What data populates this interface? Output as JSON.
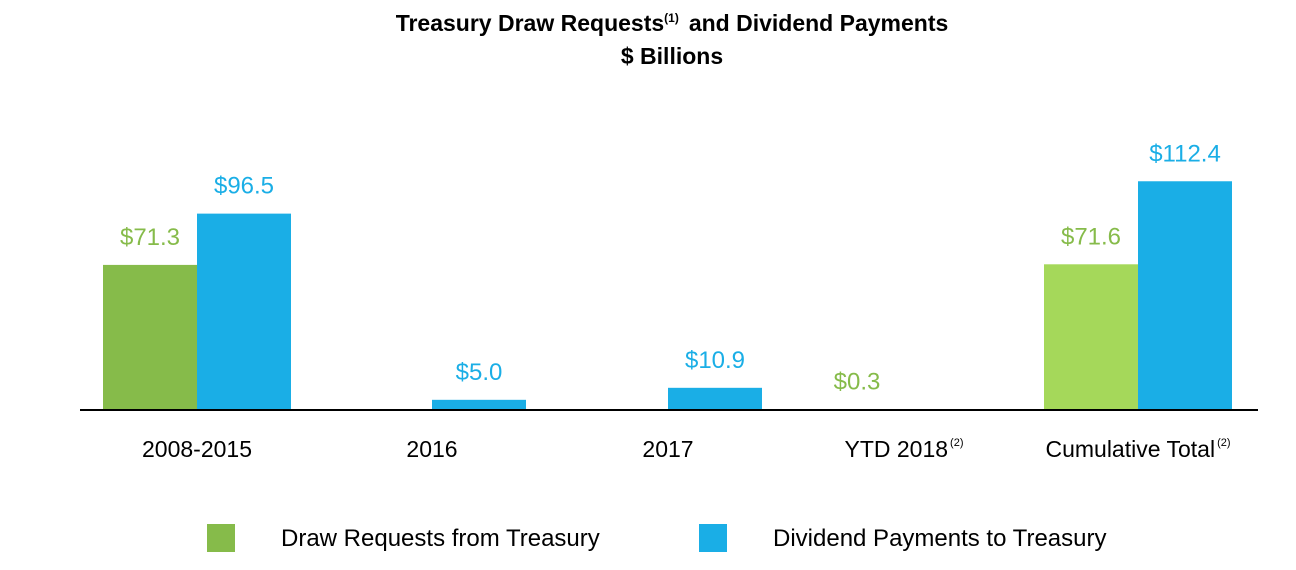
{
  "chart_data": {
    "type": "bar",
    "title": "Treasury Draw Requests",
    "title_sup": "(1)",
    "title_rest": "and Dividend Payments",
    "subtitle": "$ Billions",
    "categories": [
      {
        "label": "2008-2015",
        "sup": ""
      },
      {
        "label": "2016",
        "sup": ""
      },
      {
        "label": "2017",
        "sup": ""
      },
      {
        "label": "YTD 2018",
        "sup": "(2)"
      },
      {
        "label": "Cumulative Total",
        "sup": "(2)"
      }
    ],
    "series": [
      {
        "name": "Draw Requests from Treasury",
        "color": "#86bb4a",
        "values": [
          71.3,
          null,
          null,
          0.3,
          71.6
        ],
        "labels": [
          "$71.3",
          "",
          "",
          "$0.3",
          "$71.6"
        ],
        "bar_colors": [
          "#86bb4a",
          null,
          null,
          "#86bb4a",
          "#a5d85a"
        ]
      },
      {
        "name": "Dividend Payments to Treasury",
        "color": "#1aaee6",
        "values": [
          96.5,
          5.0,
          10.9,
          null,
          112.4
        ],
        "labels": [
          "$96.5",
          "$5.0",
          "$10.9",
          "",
          "$112.4"
        ],
        "bar_colors": [
          "#1aaee6",
          "#1aaee6",
          "#1aaee6",
          null,
          "#1aaee6"
        ]
      }
    ],
    "ylim": [
      0,
      115
    ],
    "grid": false,
    "legend_position": "bottom"
  }
}
